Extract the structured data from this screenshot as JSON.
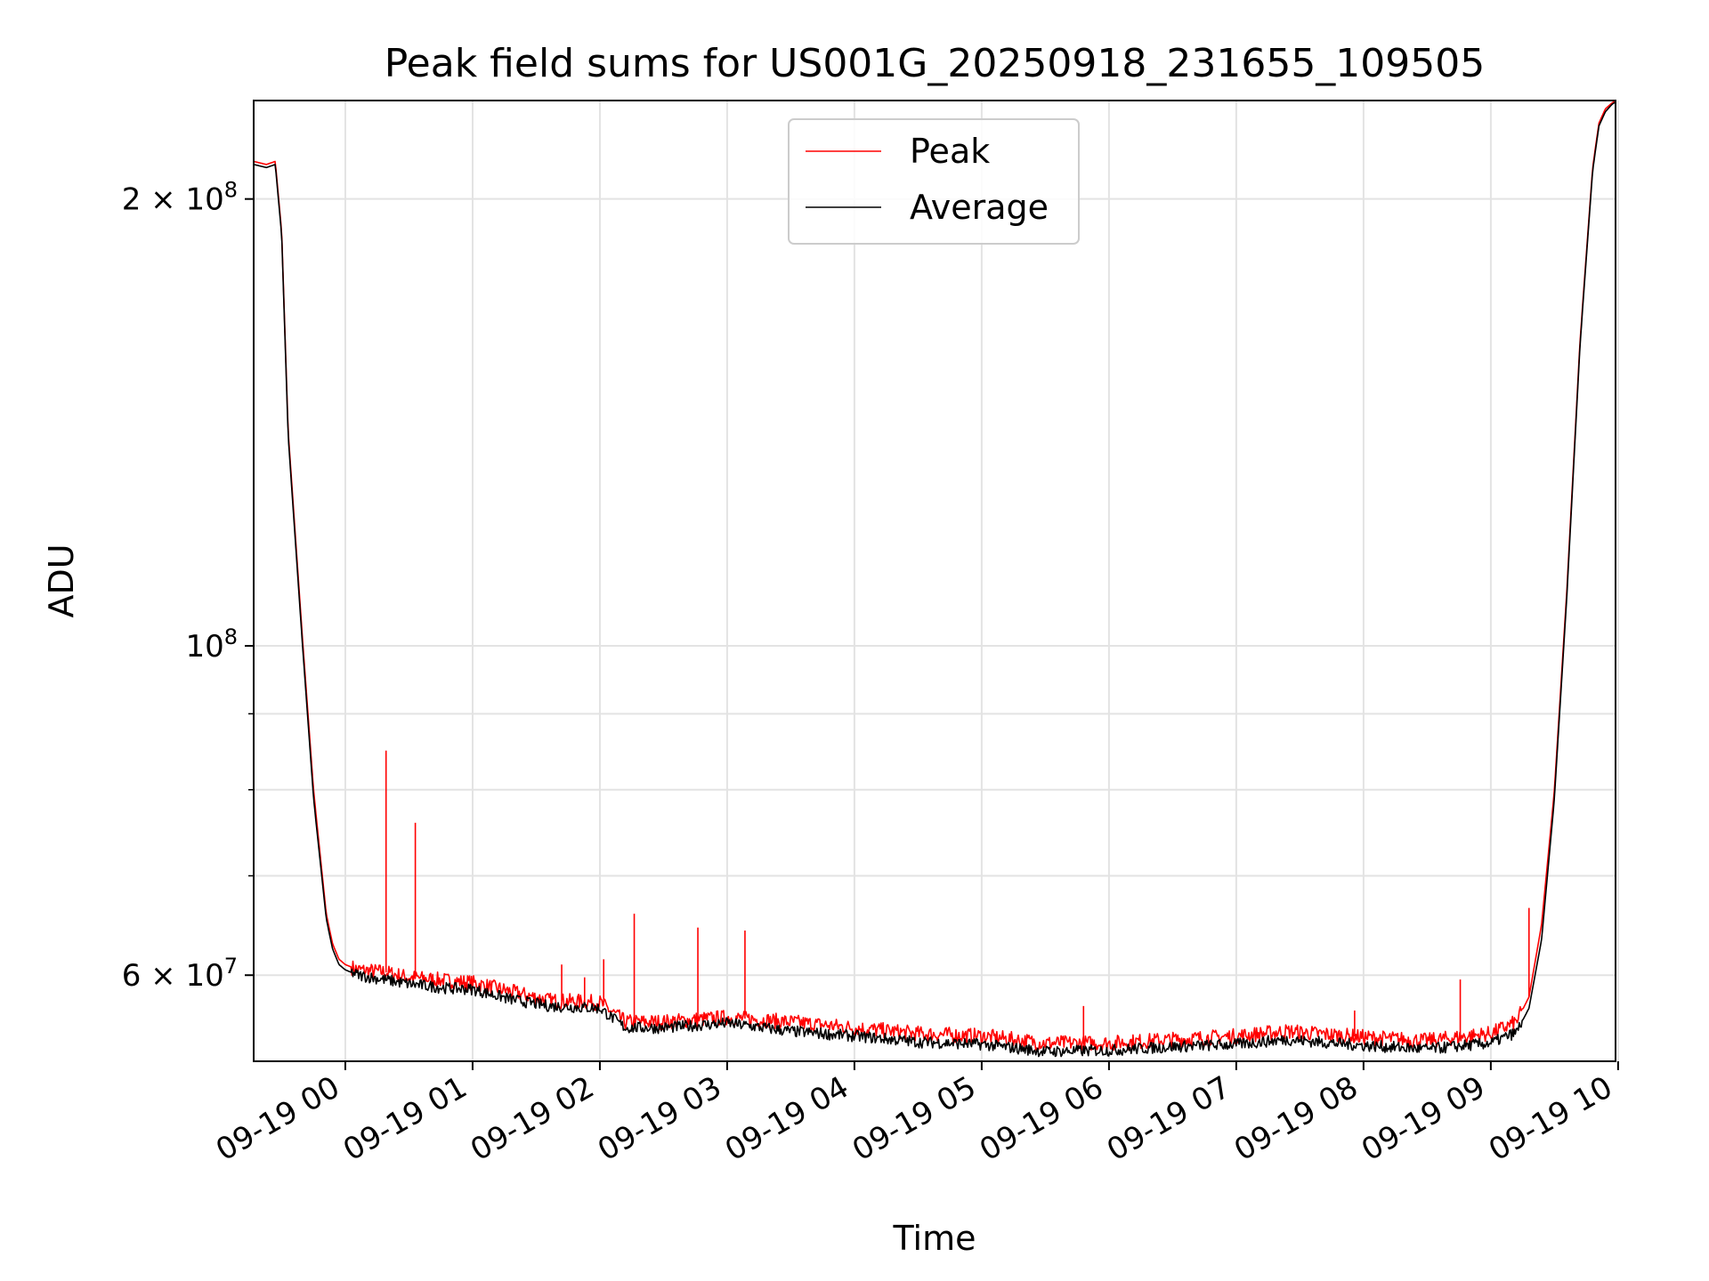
{
  "chart_data": {
    "type": "line",
    "title": "Peak field sums for US001G_20250918_231655_109505",
    "xlabel": "Time",
    "ylabel": "ADU",
    "yscale": "log",
    "ylim": [
      52500000,
      233000000
    ],
    "xlim_hours": [
      -0.72,
      9.98
    ],
    "x_unit": "hours relative to 09-19 00:00",
    "grid": true,
    "legend_position": "upper center",
    "x_ticks": [
      {
        "value": 0,
        "label": "09-19 00"
      },
      {
        "value": 1,
        "label": "09-19 01"
      },
      {
        "value": 2,
        "label": "09-19 02"
      },
      {
        "value": 3,
        "label": "09-19 03"
      },
      {
        "value": 4,
        "label": "09-19 04"
      },
      {
        "value": 5,
        "label": "09-19 05"
      },
      {
        "value": 6,
        "label": "09-19 06"
      },
      {
        "value": 7,
        "label": "09-19 07"
      },
      {
        "value": 8,
        "label": "09-19 08"
      },
      {
        "value": 9,
        "label": "09-19 09"
      },
      {
        "value": 10,
        "label": "09-19 10"
      }
    ],
    "y_major_ticks": [
      {
        "value": 60000000,
        "mant": "6 × 10",
        "exp": "7"
      },
      {
        "value": 100000000,
        "mant": "10",
        "exp": "8"
      },
      {
        "value": 200000000,
        "mant": "2 × 10",
        "exp": "8"
      }
    ],
    "y_minor_ticks": [
      70000000,
      80000000,
      90000000
    ],
    "series": [
      {
        "name": "Peak",
        "color": "#ff0000",
        "x": [
          -0.72,
          -0.62,
          -0.55,
          -0.5,
          -0.45,
          -0.35,
          -0.25,
          -0.15,
          -0.1,
          -0.05,
          0.0,
          0.1,
          0.3,
          0.5,
          0.8,
          1.0,
          1.3,
          1.6,
          2.0,
          2.2,
          2.5,
          3.0,
          3.5,
          4.0,
          4.5,
          5.0,
          5.5,
          6.0,
          6.5,
          7.0,
          7.4,
          8.0,
          8.5,
          9.0,
          9.2,
          9.3,
          9.4,
          9.5,
          9.6,
          9.7,
          9.8,
          9.85,
          9.9,
          9.95,
          9.98
        ],
        "values": [
          212000000,
          211000000,
          212000000,
          190000000,
          140000000,
          105000000,
          80000000,
          66000000,
          63000000,
          61500000,
          61000000,
          60500000,
          60300000,
          59800000,
          59500000,
          59300000,
          58500000,
          57700000,
          57500000,
          55800000,
          55800000,
          56200000,
          55800000,
          55300000,
          54800000,
          54600000,
          54000000,
          54000000,
          54300000,
          54600000,
          55000000,
          54500000,
          54200000,
          54800000,
          55800000,
          58000000,
          65000000,
          80000000,
          110000000,
          160000000,
          210000000,
          225000000,
          230000000,
          232000000,
          233000000
        ],
        "spikes": [
          {
            "x": 0.32,
            "value": 85000000
          },
          {
            "x": 0.55,
            "value": 76000000
          },
          {
            "x": 1.7,
            "value": 61000000
          },
          {
            "x": 1.88,
            "value": 59800000
          },
          {
            "x": 2.03,
            "value": 61500000
          },
          {
            "x": 2.27,
            "value": 66000000
          },
          {
            "x": 2.77,
            "value": 64600000
          },
          {
            "x": 3.14,
            "value": 64300000
          },
          {
            "x": 5.8,
            "value": 57200000
          },
          {
            "x": 7.93,
            "value": 56800000
          },
          {
            "x": 8.76,
            "value": 59600000
          },
          {
            "x": 9.3,
            "value": 66600000
          }
        ]
      },
      {
        "name": "Average",
        "color": "#000000",
        "x": [
          -0.72,
          -0.62,
          -0.55,
          -0.5,
          -0.45,
          -0.35,
          -0.25,
          -0.15,
          -0.1,
          -0.05,
          0.0,
          0.1,
          0.3,
          0.5,
          0.8,
          1.0,
          1.3,
          1.6,
          2.0,
          2.2,
          2.5,
          3.0,
          3.5,
          4.0,
          4.5,
          5.0,
          5.5,
          6.0,
          6.5,
          7.0,
          7.4,
          8.0,
          8.5,
          9.0,
          9.2,
          9.3,
          9.4,
          9.5,
          9.6,
          9.7,
          9.8,
          9.85,
          9.9,
          9.95,
          9.98
        ],
        "values": [
          211000000,
          210000000,
          211000000,
          189000000,
          139000000,
          104000000,
          79000000,
          65500000,
          62500000,
          61000000,
          60500000,
          60000000,
          59600000,
          59200000,
          58800000,
          58700000,
          57800000,
          57200000,
          57000000,
          55300000,
          55300000,
          55700000,
          55000000,
          54600000,
          54100000,
          53900000,
          53300000,
          53400000,
          53700000,
          53900000,
          54300000,
          53800000,
          53500000,
          54000000,
          54900000,
          57000000,
          63500000,
          79000000,
          109000000,
          159000000,
          209000000,
          224000000,
          229000000,
          231500000,
          232500000
        ]
      }
    ]
  }
}
